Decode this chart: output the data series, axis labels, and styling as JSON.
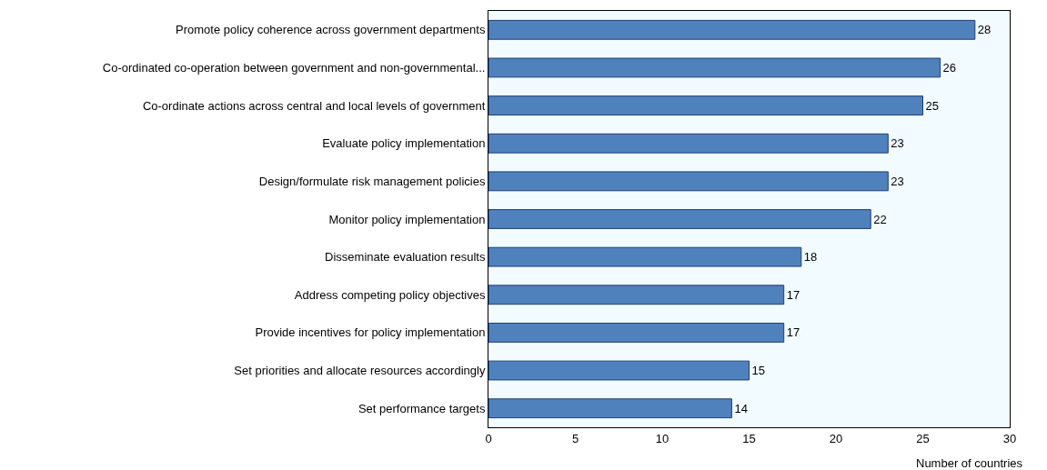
{
  "chart_data": {
    "type": "bar",
    "orientation": "horizontal",
    "xlabel": "Number of countries",
    "categories": [
      "Promote policy coherence across government departments",
      "Co-ordinated co-operation between government and non-governmental...",
      "Co-ordinate actions across central and local levels of government",
      "Evaluate policy implementation",
      "Design/formulate risk management policies",
      "Monitor policy implementation",
      "Disseminate evaluation results",
      "Address competing policy objectives",
      "Provide incentives for policy implementation",
      "Set priorities and allocate resources accordingly",
      "Set performance targets"
    ],
    "values": [
      28,
      26,
      25,
      23,
      23,
      22,
      18,
      17,
      17,
      15,
      14
    ],
    "color": "#4f81bd",
    "data_labels": true,
    "xlim": [
      0,
      30
    ],
    "xticks": [
      0,
      5,
      10,
      15,
      20,
      25,
      30
    ],
    "grid": false,
    "legend": false
  }
}
